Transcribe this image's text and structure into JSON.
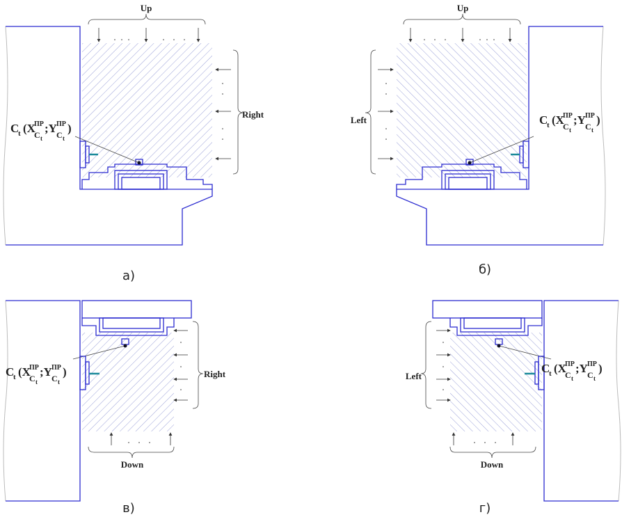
{
  "panels": [
    {
      "caption": "а)",
      "arrows": "Up",
      "side": "Right"
    },
    {
      "caption": "б)",
      "arrows": "Up",
      "side": "Left"
    },
    {
      "caption": "в)",
      "arrows": "Down",
      "side": "Right"
    },
    {
      "caption": "г)",
      "arrows": "Down",
      "side": "Left"
    }
  ],
  "formula": {
    "c": "C",
    "t": "t",
    "x": "(X",
    "sup": "ПР",
    "sub": "C",
    "y": ";Y",
    "close": ")"
  }
}
